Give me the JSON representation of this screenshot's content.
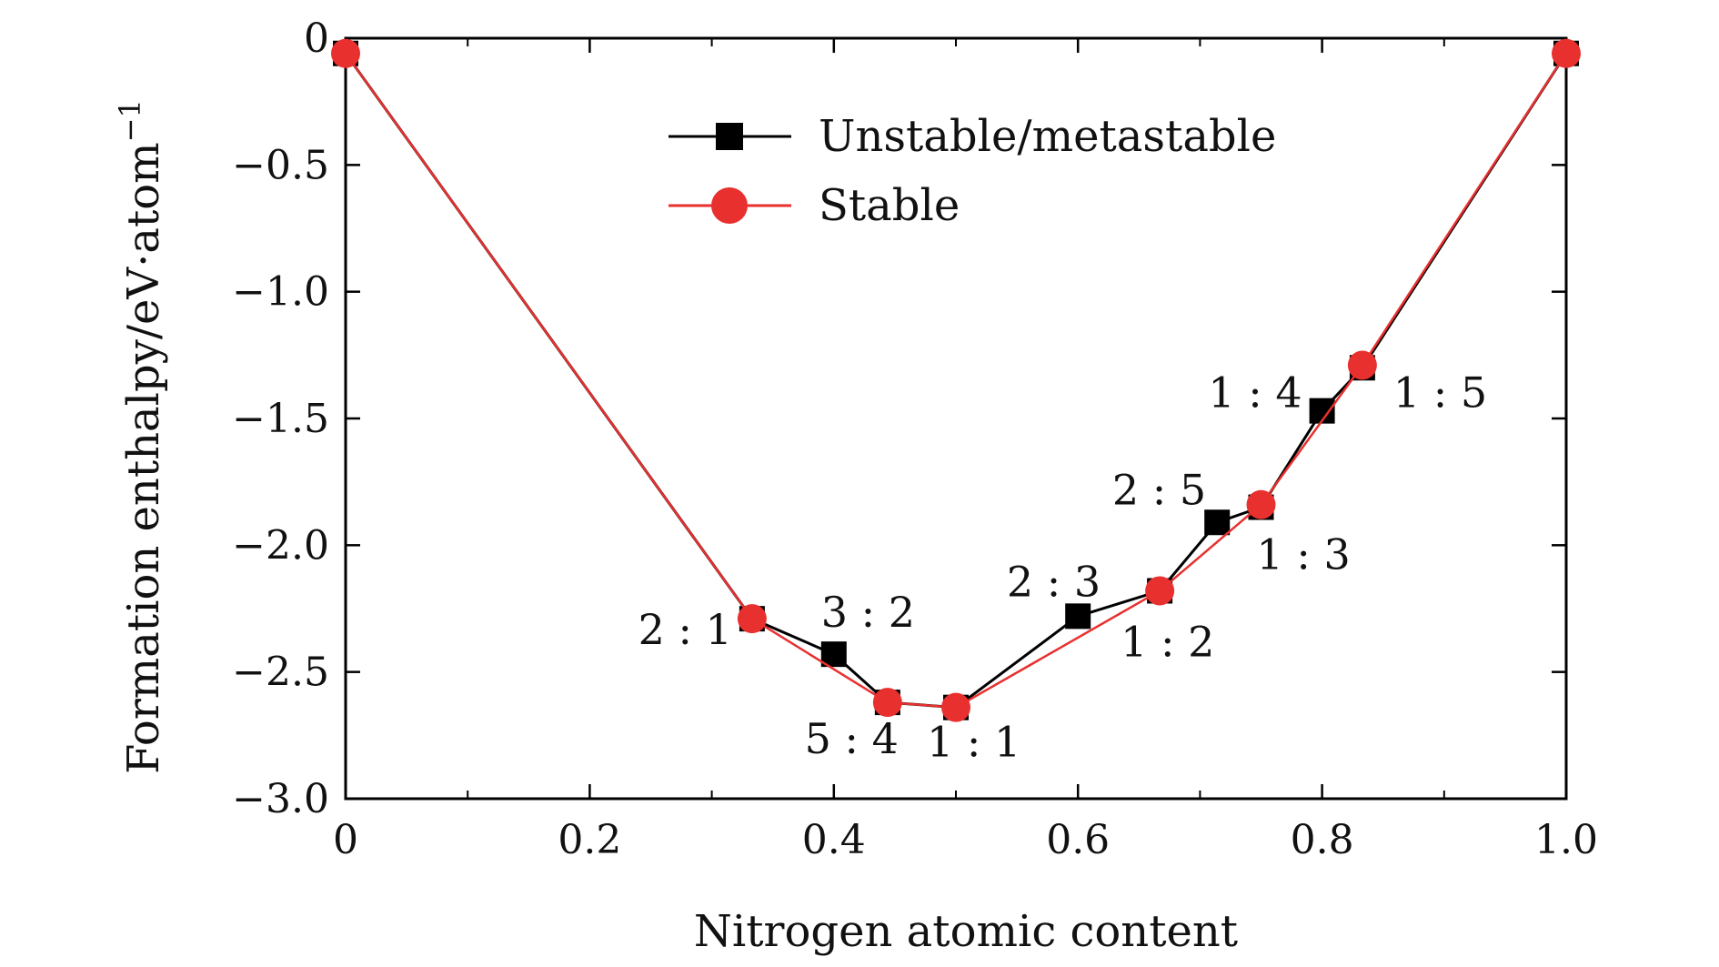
{
  "chart_data": {
    "type": "line",
    "title": "",
    "xlabel": "Nitrogen atomic content",
    "ylabel": "Formation enthalpy/eV·atom",
    "ylabel_superscript": "−1",
    "xlim": [
      0,
      1.0
    ],
    "ylim": [
      -3.0,
      0
    ],
    "x_ticks": [
      0,
      0.2,
      0.4,
      0.6,
      0.8,
      1.0
    ],
    "x_tick_labels": [
      "0",
      "0.2",
      "0.4",
      "0.6",
      "0.8",
      "1.0"
    ],
    "y_ticks": [
      0,
      -0.5,
      -1.0,
      -1.5,
      -2.0,
      -2.5,
      -3.0
    ],
    "y_tick_labels": [
      "0",
      "−0.5",
      "−1.0",
      "−1.5",
      "−2.0",
      "−2.5",
      "−3.0"
    ],
    "grid": false,
    "legend_position": "top-center",
    "series": [
      {
        "name": "Unstable/metastable",
        "marker": "square",
        "color": "#000000",
        "points": [
          {
            "x": 0.0,
            "y": -0.06
          },
          {
            "x": 0.333,
            "y": -2.29
          },
          {
            "x": 0.4,
            "y": -2.43
          },
          {
            "x": 0.444,
            "y": -2.62
          },
          {
            "x": 0.5,
            "y": -2.64
          },
          {
            "x": 0.6,
            "y": -2.28
          },
          {
            "x": 0.667,
            "y": -2.18
          },
          {
            "x": 0.714,
            "y": -1.91
          },
          {
            "x": 0.75,
            "y": -1.85
          },
          {
            "x": 0.8,
            "y": -1.47
          },
          {
            "x": 0.833,
            "y": -1.3
          },
          {
            "x": 1.0,
            "y": -0.06
          }
        ]
      },
      {
        "name": "Stable",
        "marker": "circle",
        "color": "#e8302f",
        "points": [
          {
            "x": 0.0,
            "y": -0.06
          },
          {
            "x": 0.333,
            "y": -2.29
          },
          {
            "x": 0.444,
            "y": -2.62
          },
          {
            "x": 0.5,
            "y": -2.64
          },
          {
            "x": 0.667,
            "y": -2.18
          },
          {
            "x": 0.75,
            "y": -1.84
          },
          {
            "x": 0.833,
            "y": -1.29
          },
          {
            "x": 1.0,
            "y": -0.06
          }
        ]
      }
    ],
    "annotations": [
      {
        "text": "2 : 1",
        "x": 0.333,
        "y": -2.29,
        "anchor": "end",
        "dx": -22,
        "dy": 28
      },
      {
        "text": "3 : 2",
        "x": 0.4,
        "y": -2.43,
        "anchor": "start",
        "dx": -14,
        "dy": -30
      },
      {
        "text": "5 : 4",
        "x": 0.444,
        "y": -2.62,
        "anchor": "end",
        "dx": 12,
        "dy": 56
      },
      {
        "text": "1 : 1",
        "x": 0.5,
        "y": -2.64,
        "anchor": "start",
        "dx": -32,
        "dy": 54
      },
      {
        "text": "2 : 3",
        "x": 0.6,
        "y": -2.28,
        "anchor": "end",
        "dx": 25,
        "dy": -22
      },
      {
        "text": "1 : 2",
        "x": 0.667,
        "y": -2.18,
        "anchor": "start",
        "dx": -43,
        "dy": 72
      },
      {
        "text": "2 : 5",
        "x": 0.714,
        "y": -1.91,
        "anchor": "end",
        "dx": -12,
        "dy": -20
      },
      {
        "text": "1 : 3",
        "x": 0.75,
        "y": -1.85,
        "anchor": "start",
        "dx": -5,
        "dy": 68
      },
      {
        "text": "1 : 4",
        "x": 0.8,
        "y": -1.47,
        "anchor": "end",
        "dx": -22,
        "dy": -4
      },
      {
        "text": "1 : 5",
        "x": 0.833,
        "y": -1.3,
        "anchor": "start",
        "dx": 34,
        "dy": 43
      }
    ]
  }
}
